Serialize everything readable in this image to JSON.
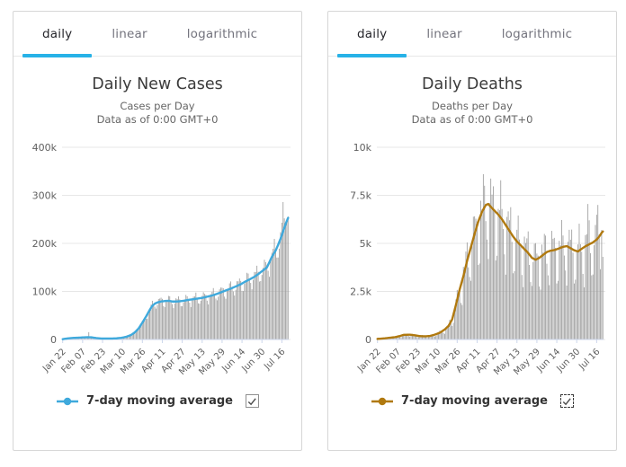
{
  "theme": {
    "accent": "#27b2e7",
    "card_border": "#d6d6d6",
    "grid_color": "#e7e7e7",
    "axis_line_color": "#ccd6eb",
    "bar_color": "#9c9c9c",
    "cases_line_color": "#3fa9dc",
    "deaths_line_color": "#b0790f"
  },
  "charts": [
    {
      "name": "daily-new-cases",
      "tabs": [
        {
          "label": "daily",
          "active": true
        },
        {
          "label": "linear",
          "active": false
        },
        {
          "label": "logarithmic",
          "active": false
        }
      ],
      "title": "Daily New Cases",
      "subtitle": [
        "Cases per Day",
        "Data as of 0:00 GMT+0"
      ],
      "legend": {
        "label": "7-day moving average",
        "checked": true,
        "focused": false,
        "marker_color": "#3fa9dc"
      },
      "chart_data": {
        "type": "bar",
        "title": "Daily New Cases",
        "xlabel": "",
        "ylabel": "",
        "x_days_total": 182,
        "x_start_label": "Jan 22",
        "x_ticks": [
          {
            "label": "Jan 22",
            "day": 0
          },
          {
            "label": "Feb 07",
            "day": 16
          },
          {
            "label": "Feb 23",
            "day": 32
          },
          {
            "label": "Mar 10",
            "day": 48
          },
          {
            "label": "Mar 26",
            "day": 64
          },
          {
            "label": "Apr 11",
            "day": 80
          },
          {
            "label": "Apr 27",
            "day": 96
          },
          {
            "label": "May 13",
            "day": 112
          },
          {
            "label": "May 29",
            "day": 128
          },
          {
            "label": "Jun 14",
            "day": 144
          },
          {
            "label": "Jun 30",
            "day": 160
          },
          {
            "label": "Jul 16",
            "day": 176
          }
        ],
        "ylim": [
          0,
          400000
        ],
        "y_ticks": [
          {
            "label": "0",
            "value": 0
          },
          {
            "label": "100k",
            "value": 100000
          },
          {
            "label": "200k",
            "value": 200000
          },
          {
            "label": "300k",
            "value": 300000
          },
          {
            "label": "400k",
            "value": 400000
          }
        ],
        "grid": true,
        "legend_position": "bottom",
        "series": {
          "bars": {
            "type": "bar",
            "color": "#9c9c9c",
            "weekly_factors": [
              1.05,
              1.1,
              1.12,
              1.03,
              0.9,
              0.84,
              0.96
            ],
            "jitter": 0.035,
            "overrides": {
              "21": 15200,
              "177": 286000,
              "178": 252000,
              "179": 244000,
              "180": 251000,
              "181": 256000
            }
          },
          "moving_average": {
            "name": "7-day moving average",
            "type": "line",
            "color": "#3fa9dc",
            "width": 2.4,
            "points_day_value": [
              [
                0,
                700
              ],
              [
                4,
                2200
              ],
              [
                8,
                3200
              ],
              [
                12,
                3600
              ],
              [
                16,
                4300
              ],
              [
                20,
                4700
              ],
              [
                23,
                4500
              ],
              [
                27,
                2900
              ],
              [
                31,
                2000
              ],
              [
                35,
                1900
              ],
              [
                39,
                2000
              ],
              [
                43,
                2300
              ],
              [
                47,
                3400
              ],
              [
                51,
                5500
              ],
              [
                55,
                9500
              ],
              [
                58,
                15000
              ],
              [
                61,
                23000
              ],
              [
                64,
                35000
              ],
              [
                67,
                48000
              ],
              [
                70,
                62000
              ],
              [
                72,
                70000
              ],
              [
                74,
                74500
              ],
              [
                76,
                77000
              ],
              [
                79,
                79000
              ],
              [
                82,
                80000
              ],
              [
                85,
                80500
              ],
              [
                88,
                79000
              ],
              [
                91,
                79000
              ],
              [
                94,
                79500
              ],
              [
                97,
                80500
              ],
              [
                100,
                82000
              ],
              [
                104,
                83500
              ],
              [
                108,
                85000
              ],
              [
                112,
                86500
              ],
              [
                116,
                89000
              ],
              [
                120,
                91500
              ],
              [
                124,
                95000
              ],
              [
                129,
                100000
              ],
              [
                133,
                104000
              ],
              [
                136,
                107000
              ],
              [
                140,
                111500
              ],
              [
                143,
                115000
              ],
              [
                147,
                121000
              ],
              [
                150,
                125000
              ],
              [
                154,
                130500
              ],
              [
                157,
                136000
              ],
              [
                161,
                144000
              ],
              [
                164,
                150000
              ],
              [
                168,
                172000
              ],
              [
                171,
                185000
              ],
              [
                173,
                197000
              ],
              [
                175,
                210000
              ],
              [
                177,
                225000
              ],
              [
                179,
                240000
              ],
              [
                181,
                253000
              ]
            ]
          }
        }
      }
    },
    {
      "name": "daily-deaths",
      "tabs": [
        {
          "label": "daily",
          "active": true
        },
        {
          "label": "linear",
          "active": false
        },
        {
          "label": "logarithmic",
          "active": false
        }
      ],
      "title": "Daily Deaths",
      "subtitle": [
        "Deaths per Day",
        "Data as of 0:00 GMT+0"
      ],
      "legend": {
        "label": "7-day moving average",
        "checked": true,
        "focused": true,
        "marker_color": "#b0790f"
      },
      "chart_data": {
        "type": "bar",
        "title": "Daily Deaths",
        "xlabel": "",
        "ylabel": "",
        "x_days_total": 182,
        "x_start_label": "Jan 22",
        "x_ticks": [
          {
            "label": "Jan 22",
            "day": 0
          },
          {
            "label": "Feb 07",
            "day": 16
          },
          {
            "label": "Feb 23",
            "day": 32
          },
          {
            "label": "Mar 10",
            "day": 48
          },
          {
            "label": "Mar 26",
            "day": 64
          },
          {
            "label": "Apr 11",
            "day": 80
          },
          {
            "label": "Apr 27",
            "day": 96
          },
          {
            "label": "May 13",
            "day": 112
          },
          {
            "label": "May 29",
            "day": 128
          },
          {
            "label": "Jun 14",
            "day": 144
          },
          {
            "label": "Jun 30",
            "day": 160
          },
          {
            "label": "Jul 16",
            "day": 176
          }
        ],
        "ylim": [
          0,
          10000
        ],
        "y_ticks": [
          {
            "label": "0",
            "value": 0
          },
          {
            "label": "2.5k",
            "value": 2500
          },
          {
            "label": "5k",
            "value": 5000
          },
          {
            "label": "7.5k",
            "value": 7500
          },
          {
            "label": "10k",
            "value": 10000
          }
        ],
        "grid": true,
        "legend_position": "bottom",
        "series": {
          "bars": {
            "type": "bar",
            "color": "#9c9c9c",
            "weekly_factors": [
              1.12,
              1.2,
              1.15,
              0.95,
              0.68,
              0.62,
              1.05
            ],
            "jitter": 0.09,
            "overrides": {
              "21": 254,
              "169": 7050,
              "177": 7000,
              "180": 5700,
              "181": 4300
            }
          },
          "moving_average": {
            "name": "7-day moving average",
            "type": "line",
            "color": "#b0790f",
            "width": 2.4,
            "points_day_value": [
              [
                0,
                30
              ],
              [
                6,
                60
              ],
              [
                10,
                90
              ],
              [
                14,
                120
              ],
              [
                18,
                180
              ],
              [
                21,
                240
              ],
              [
                26,
                250
              ],
              [
                30,
                220
              ],
              [
                34,
                175
              ],
              [
                38,
                165
              ],
              [
                42,
                180
              ],
              [
                46,
                250
              ],
              [
                50,
                350
              ],
              [
                54,
                520
              ],
              [
                57,
                700
              ],
              [
                60,
                1050
              ],
              [
                63,
                1800
              ],
              [
                66,
                2600
              ],
              [
                69,
                3300
              ],
              [
                72,
                4100
              ],
              [
                75,
                4800
              ],
              [
                78,
                5500
              ],
              [
                81,
                6150
              ],
              [
                84,
                6650
              ],
              [
                87,
                7000
              ],
              [
                89,
                7050
              ],
              [
                91,
                6900
              ],
              [
                94,
                6700
              ],
              [
                97,
                6500
              ],
              [
                100,
                6250
              ],
              [
                103,
                5950
              ],
              [
                106,
                5650
              ],
              [
                109,
                5350
              ],
              [
                112,
                5100
              ],
              [
                115,
                4900
              ],
              [
                118,
                4700
              ],
              [
                121,
                4500
              ],
              [
                124,
                4250
              ],
              [
                127,
                4150
              ],
              [
                130,
                4250
              ],
              [
                133,
                4400
              ],
              [
                136,
                4550
              ],
              [
                139,
                4620
              ],
              [
                142,
                4650
              ],
              [
                145,
                4720
              ],
              [
                149,
                4820
              ],
              [
                152,
                4860
              ],
              [
                155,
                4750
              ],
              [
                158,
                4640
              ],
              [
                161,
                4580
              ],
              [
                164,
                4720
              ],
              [
                167,
                4850
              ],
              [
                170,
                4950
              ],
              [
                173,
                5050
              ],
              [
                176,
                5200
              ],
              [
                178,
                5350
              ],
              [
                180,
                5550
              ],
              [
                181,
                5620
              ]
            ]
          }
        }
      }
    }
  ]
}
